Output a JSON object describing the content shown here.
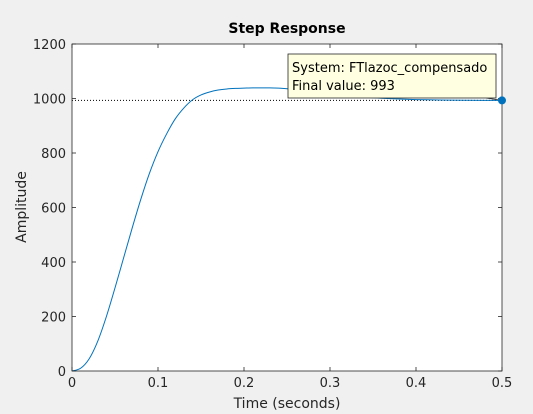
{
  "chart_data": {
    "type": "line",
    "title": "Step Response",
    "xlabel": "Time (seconds)",
    "ylabel": "Amplitude",
    "xlim": [
      0,
      0.5
    ],
    "ylim": [
      0,
      1200
    ],
    "xticks": [
      0,
      0.1,
      0.2,
      0.3,
      0.4,
      0.5
    ],
    "xtick_labels": [
      "0",
      "0.1",
      "0.2",
      "0.3",
      "0.4",
      "0.5"
    ],
    "yticks": [
      0,
      200,
      400,
      600,
      800,
      1000,
      1200
    ],
    "ytick_labels": [
      "0",
      "200",
      "400",
      "600",
      "800",
      "1000",
      "1200"
    ],
    "grid": false,
    "series": [
      {
        "name": "FTlazoc_compensado",
        "color": "#0072bd",
        "x": [
          0,
          0.01,
          0.02,
          0.03,
          0.04,
          0.05,
          0.06,
          0.07,
          0.08,
          0.09,
          0.1,
          0.11,
          0.12,
          0.13,
          0.14,
          0.15,
          0.16,
          0.17,
          0.18,
          0.19,
          0.2,
          0.21,
          0.22,
          0.23,
          0.24,
          0.25,
          0.26,
          0.27,
          0.28,
          0.29,
          0.3,
          0.32,
          0.34,
          0.36,
          0.38,
          0.4,
          0.42,
          0.44,
          0.46,
          0.48,
          0.5
        ],
        "y": [
          0,
          10,
          45,
          110,
          200,
          305,
          415,
          525,
          630,
          725,
          805,
          870,
          925,
          965,
          995,
          1013,
          1024,
          1031,
          1035,
          1037,
          1038,
          1039,
          1039,
          1039,
          1038,
          1036,
          1034,
          1031,
          1027,
          1022,
          1017,
          1010,
          1005,
          1001,
          998,
          996,
          995,
          994,
          993.5,
          993.2,
          993
        ]
      }
    ],
    "final_value": {
      "value": 993,
      "line_color": "#000000",
      "line_style": "dotted"
    },
    "datatip": {
      "x": 0.5,
      "y": 993,
      "marker_color": "#0072bd",
      "box_color": "#ffffe1",
      "line1": "System: FTlazoc_compensado",
      "line2": "Final value: 993"
    }
  }
}
